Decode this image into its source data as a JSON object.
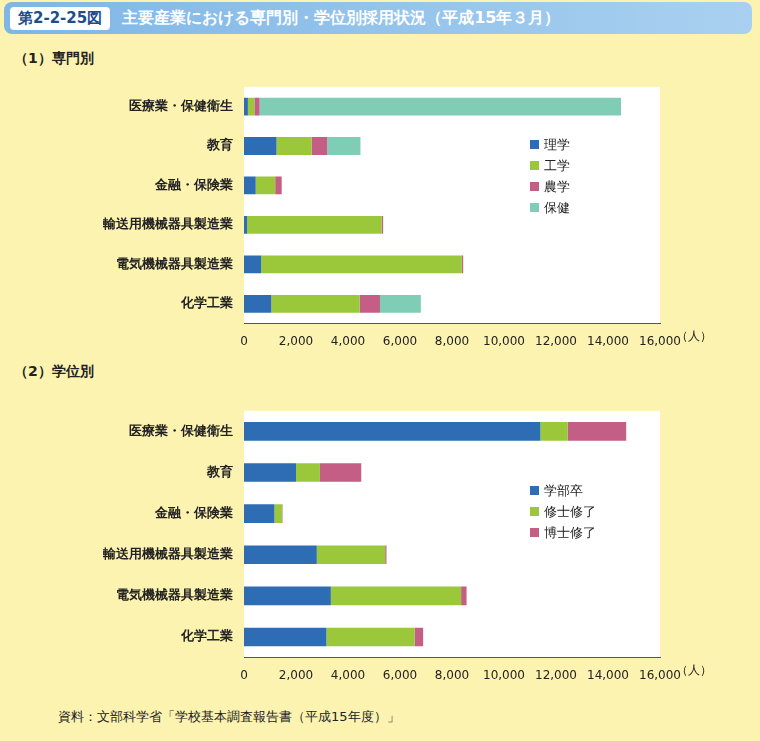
{
  "header": {
    "figure_label": "第2-2-25図",
    "title": "主要産業における専門別・学位別採用状況（平成15年３月）"
  },
  "source": "資料：文部科学省「学校基本調査報告書（平成15年度）」",
  "chart_data": [
    {
      "type": "bar",
      "title": "（1）専門別",
      "orientation": "horizontal",
      "stacked": true,
      "grid": false,
      "legend": "right",
      "categories": [
        "医療業・保健衛生",
        "教育",
        "金融・保険業",
        "輸送用機械器具製造業",
        "電気機械器具製造業",
        "化学工業"
      ],
      "series": [
        {
          "name": "理学",
          "color": "#2e6db3",
          "values": [
            150,
            1250,
            450,
            120,
            660,
            1050
          ]
        },
        {
          "name": "工学",
          "color": "#9bc83b",
          "values": [
            250,
            1350,
            750,
            5180,
            7720,
            3400
          ]
        },
        {
          "name": "農学",
          "color": "#c45e84",
          "values": [
            200,
            600,
            250,
            50,
            50,
            780
          ]
        },
        {
          "name": "保健",
          "color": "#7fcdb5",
          "values": [
            13900,
            1280,
            0,
            0,
            0,
            1570
          ]
        }
      ],
      "xlim": [
        0,
        16000
      ],
      "xticks": [
        0,
        {
          "value": 2000,
          "label": "2,000"
        },
        {
          "value": 4000,
          "label": "4,000"
        },
        {
          "value": 6000,
          "label": "6,000"
        },
        {
          "value": 8000,
          "label": "8,000"
        },
        {
          "value": 10000,
          "label": "10,000"
        },
        {
          "value": 12000,
          "label": "12,000"
        },
        {
          "value": 14000,
          "label": "14,000"
        },
        {
          "value": 16000,
          "label": "16,000"
        }
      ],
      "xlabel": "（人）"
    },
    {
      "type": "bar",
      "title": "（2）学位別",
      "orientation": "horizontal",
      "stacked": true,
      "grid": false,
      "legend": "right",
      "categories": [
        "医療業・保健衛生",
        "教育",
        "金融・保険業",
        "輸送用機械器具製造業",
        "電気機械器具製造業",
        "化学工業"
      ],
      "series": [
        {
          "name": "学部卒",
          "color": "#2e6db3",
          "values": [
            11400,
            2000,
            1170,
            2800,
            3340,
            3170
          ]
        },
        {
          "name": "修士修了",
          "color": "#9bc83b",
          "values": [
            1050,
            920,
            290,
            2630,
            5010,
            3390
          ]
        },
        {
          "name": "博士修了",
          "color": "#c45e84",
          "values": [
            2250,
            1590,
            20,
            50,
            210,
            330
          ]
        }
      ],
      "xlim": [
        0,
        16000
      ],
      "xticks": [
        0,
        {
          "value": 2000,
          "label": "2,000"
        },
        {
          "value": 4000,
          "label": "4,000"
        },
        {
          "value": 6000,
          "label": "6,000"
        },
        {
          "value": 8000,
          "label": "8,000"
        },
        {
          "value": 10000,
          "label": "10,000"
        },
        {
          "value": 12000,
          "label": "12,000"
        },
        {
          "value": 14000,
          "label": "14,000"
        },
        {
          "value": 16000,
          "label": "16,000"
        }
      ],
      "xlabel": "（人）"
    }
  ]
}
